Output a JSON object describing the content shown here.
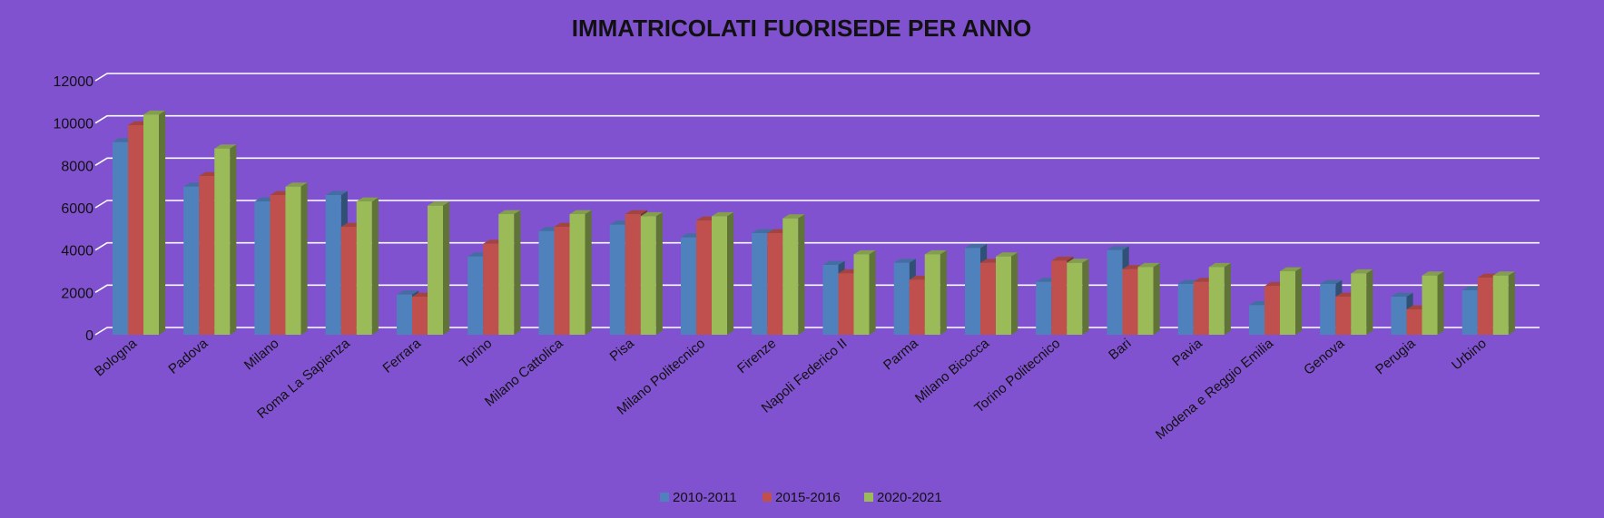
{
  "colors": {
    "background": "#8152d0",
    "gridline": "#ffffff",
    "text": "#111111"
  },
  "chart_data": {
    "type": "bar",
    "title": "IMMATRICOLATI FUORISEDE PER ANNO",
    "xlabel": "",
    "ylabel": "",
    "ylim": [
      0,
      12000
    ],
    "yticks": [
      0,
      2000,
      4000,
      6000,
      8000,
      10000,
      12000
    ],
    "grid": true,
    "legend_position": "bottom",
    "categories": [
      "Bologna",
      "Padova",
      "Milano",
      "Roma La Sapienza",
      "Ferrara",
      "Torino",
      "Milano Cattolica",
      "Pisa",
      "Milano Politecnico",
      "Firenze",
      "Napoli Federico II",
      "Parma",
      "Milano Bicocca",
      "Torino Politecnico",
      "Bari",
      "Pavia",
      "Modena e Reggio Emilia",
      "Genova",
      "Perugia",
      "Urbino"
    ],
    "series": [
      {
        "name": "2010-2011",
        "color": "#4f81bd",
        "values": [
          9100,
          7000,
          6300,
          6600,
          1900,
          3700,
          4900,
          5200,
          4600,
          4800,
          3300,
          3400,
          4100,
          2500,
          4000,
          2400,
          1400,
          2400,
          1800,
          2100
        ]
      },
      {
        "name": "2015-2016",
        "color": "#c0504d",
        "values": [
          9900,
          7500,
          6600,
          5100,
          1800,
          4300,
          5100,
          5700,
          5400,
          4800,
          2900,
          2600,
          3400,
          3500,
          3100,
          2500,
          2300,
          1800,
          1200,
          2700
        ]
      },
      {
        "name": "2020-2021",
        "color": "#9bbb59",
        "values": [
          10400,
          8800,
          7000,
          6300,
          6100,
          5700,
          5700,
          5600,
          5600,
          5500,
          3800,
          3800,
          3700,
          3400,
          3200,
          3200,
          3000,
          2900,
          2800,
          2800
        ]
      }
    ]
  }
}
